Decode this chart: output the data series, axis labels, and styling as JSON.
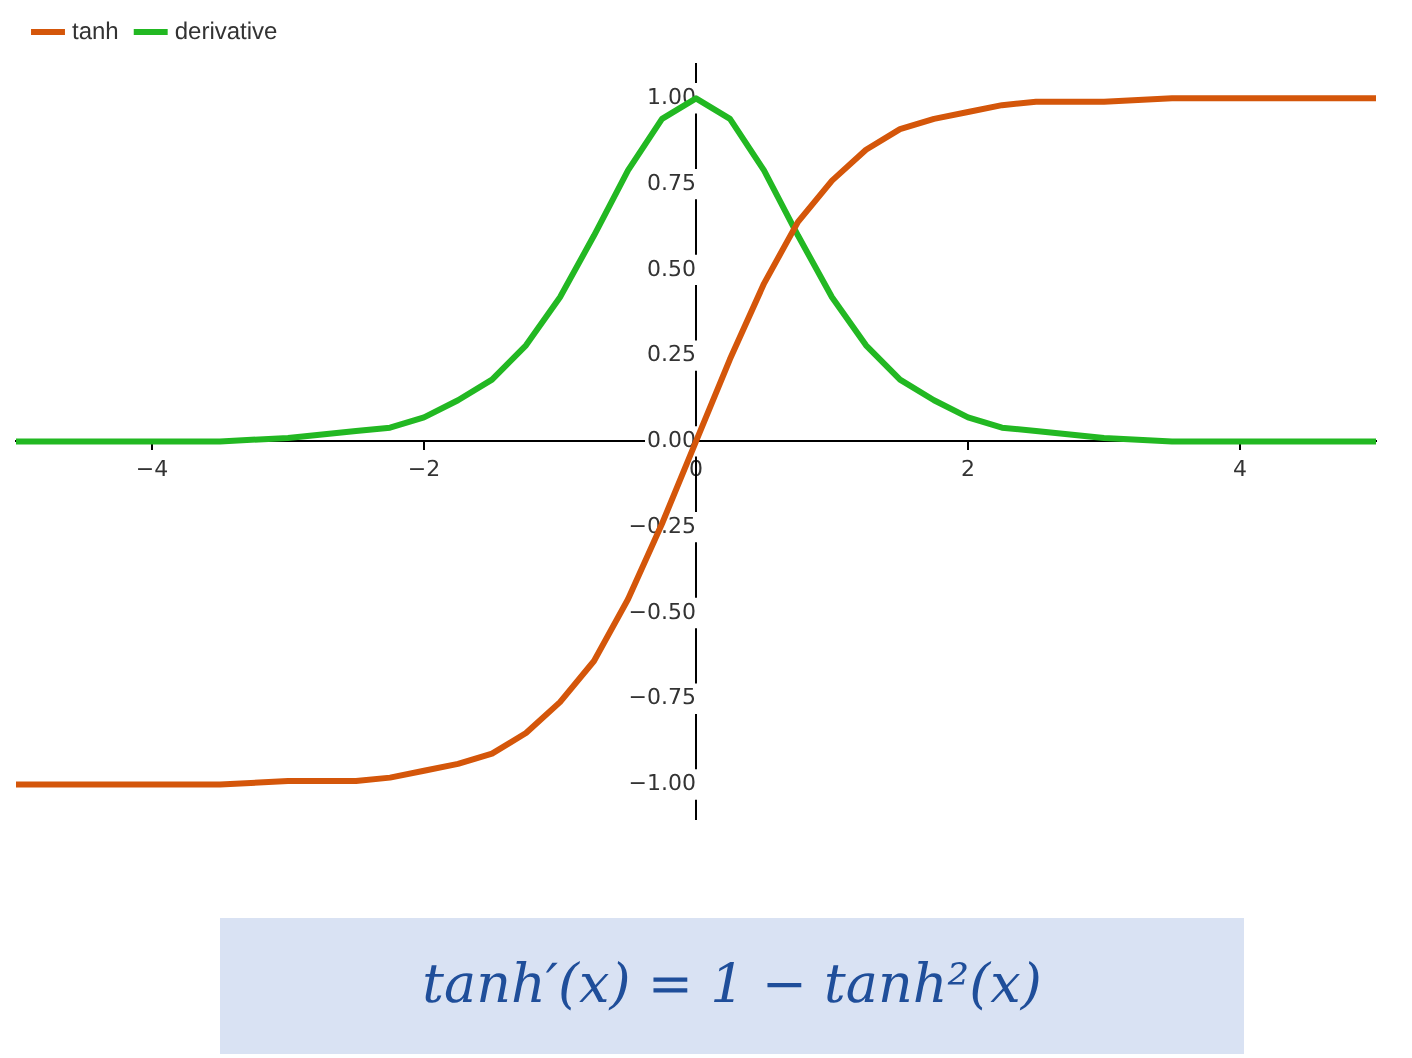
{
  "chart_data": {
    "type": "line",
    "x": [
      -5,
      -4.5,
      -4,
      -3.5,
      -3,
      -2.75,
      -2.5,
      -2.25,
      -2,
      -1.75,
      -1.5,
      -1.25,
      -1,
      -0.75,
      -0.5,
      -0.25,
      0,
      0.25,
      0.5,
      0.75,
      1,
      1.25,
      1.5,
      1.75,
      2,
      2.25,
      2.5,
      2.75,
      3,
      3.5,
      4,
      4.5,
      5
    ],
    "series": [
      {
        "name": "tanh",
        "color": "#d4560a",
        "values": [
          -1.0,
          -1.0,
          -1.0,
          -1.0,
          -0.99,
          -0.99,
          -0.99,
          -0.98,
          -0.96,
          -0.94,
          -0.91,
          -0.85,
          -0.76,
          -0.64,
          -0.46,
          -0.24,
          0,
          0.24,
          0.46,
          0.64,
          0.76,
          0.85,
          0.91,
          0.94,
          0.96,
          0.98,
          0.99,
          0.99,
          0.99,
          1.0,
          1.0,
          1.0,
          1.0
        ]
      },
      {
        "name": "derivative",
        "color": "#22b822",
        "values": [
          0,
          0,
          0,
          0,
          0.01,
          0.02,
          0.03,
          0.04,
          0.07,
          0.12,
          0.18,
          0.28,
          0.42,
          0.6,
          0.79,
          0.94,
          1.0,
          0.94,
          0.79,
          0.6,
          0.42,
          0.28,
          0.18,
          0.12,
          0.07,
          0.04,
          0.03,
          0.02,
          0.01,
          0,
          0,
          0,
          0
        ]
      }
    ],
    "xlim": [
      -5,
      5
    ],
    "ylim": [
      -1.1,
      1.1
    ],
    "xticks": [
      {
        "value": -4,
        "label": "−4"
      },
      {
        "value": -2,
        "label": "−2"
      },
      0,
      2,
      4
    ],
    "yticks": [
      {
        "value": -1,
        "label": "−1.00"
      },
      {
        "value": -0.75,
        "label": "−0.75"
      },
      {
        "value": -0.5,
        "label": "−0.50"
      },
      {
        "value": -0.25,
        "label": "−0.25"
      },
      {
        "value": 0,
        "label": "0.00"
      },
      {
        "value": 0.25,
        "label": "0.25"
      },
      {
        "value": 0.5,
        "label": "0.50"
      },
      {
        "value": 0.75,
        "label": "0.75"
      },
      {
        "value": 1,
        "label": "1.00"
      }
    ],
    "grid": false,
    "legend": "top left",
    "marker": "none",
    "line_style": "solid",
    "annotations": [
      "tanh′(x) = 1 − tanh²(x)"
    ]
  }
}
